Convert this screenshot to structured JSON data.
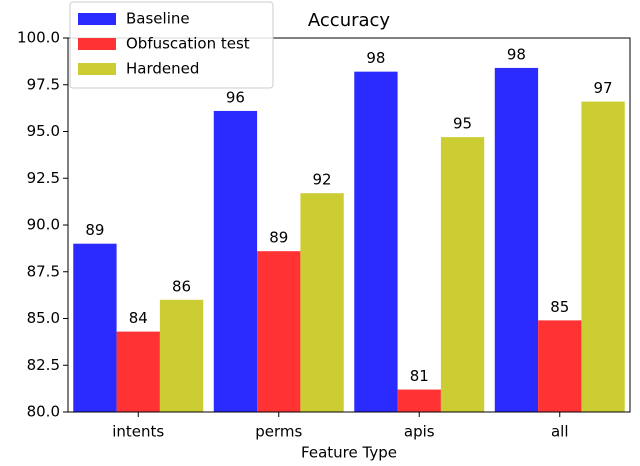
{
  "chart_data": {
    "type": "bar",
    "title": "Accuracy",
    "x_label": "Feature Type",
    "categories": [
      "intents",
      "perms",
      "apis",
      "all"
    ],
    "series": [
      {
        "name": "Baseline",
        "color": "#2b2bff",
        "values": [
          89.0,
          96.1,
          98.2,
          98.4
        ],
        "value_labels": [
          "89",
          "96",
          "98",
          "98"
        ]
      },
      {
        "name": "Obfuscation test",
        "color": "#ff3333",
        "values": [
          84.3,
          88.6,
          81.2,
          84.9
        ],
        "value_labels": [
          "84",
          "89",
          "81",
          "85"
        ]
      },
      {
        "name": "Hardened",
        "color": "#cccc33",
        "values": [
          86.0,
          91.7,
          94.7,
          96.6
        ],
        "value_labels": [
          "86",
          "92",
          "95",
          "97"
        ]
      }
    ],
    "ylim": [
      80,
      100
    ],
    "yticks": [
      {
        "value": 80,
        "label": "80.0"
      },
      {
        "value": 82.5,
        "label": "82.5"
      },
      {
        "value": 85,
        "label": "85.0"
      },
      {
        "value": 87.5,
        "label": "87.5"
      },
      {
        "value": 90,
        "label": "90.0"
      },
      {
        "value": 92.5,
        "label": "92.5"
      },
      {
        "value": 95,
        "label": "95.0"
      },
      {
        "value": 97.5,
        "label": "97.5"
      },
      {
        "value": 100,
        "label": "100.0"
      }
    ],
    "legend": "upper left"
  }
}
